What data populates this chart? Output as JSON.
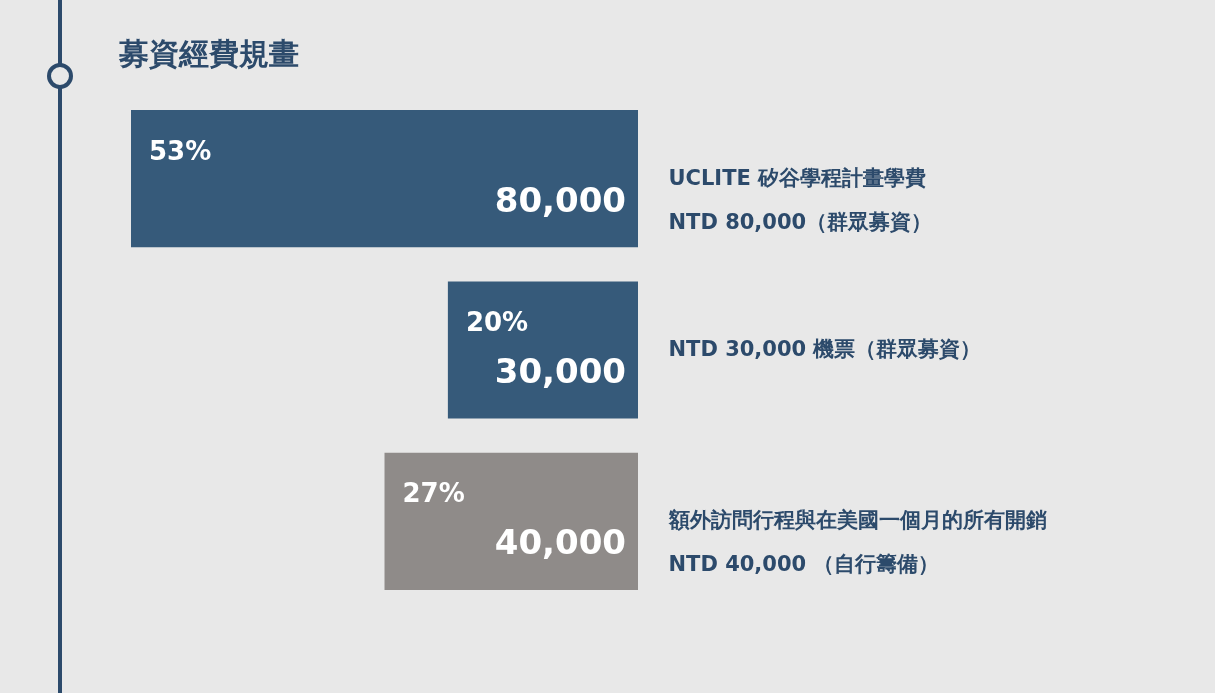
{
  "chart_data": {
    "type": "bar",
    "orientation": "horizontal",
    "title": "募資經費規畫",
    "categories": [
      "UCLITE 矽谷學程計畫學費\nNTD 80,000（群眾募資）",
      "NTD 30,000 機票（群眾募資）",
      "額外訪問行程與在美國一個月的所有開銷\nNTD 40,000 （自行籌備）"
    ],
    "values": [
      80000,
      30000,
      40000
    ],
    "colors": [
      "#365a7a",
      "#365a7a",
      "#8f8b89"
    ],
    "xlim": [
      80000,
      0
    ],
    "value_labels": [
      "80,000",
      "30,000",
      "40,000"
    ],
    "tick_labels": "y",
    "annotations": [
      "53%",
      "20%",
      "27%"
    ],
    "grid": false,
    "legend": false
  }
}
